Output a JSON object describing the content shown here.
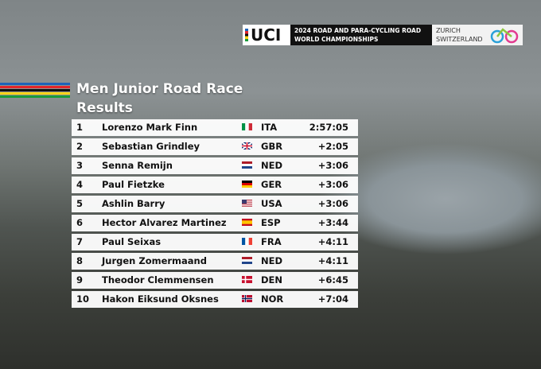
{
  "banner": {
    "logo": "UCI",
    "line1": "2024 ROAD AND PARA-CYCLING ROAD",
    "line2": "WORLD CHAMPIONSHIPS",
    "city": "ZURICH",
    "country": "SWITZERLAND"
  },
  "header": {
    "title": "Men Junior Road Race",
    "subtitle": "Results"
  },
  "table": {
    "rows": [
      [
        "1",
        "Lorenzo Mark Finn",
        "ITA",
        "2:57:05"
      ],
      [
        "2",
        "Sebastian Grindley",
        "GBR",
        "+2:05"
      ],
      [
        "3",
        "Senna Remijn",
        "NED",
        "+3:06"
      ],
      [
        "4",
        "Paul Fietzke",
        "GER",
        "+3:06"
      ],
      [
        "5",
        "Ashlin Barry",
        "USA",
        "+3:06"
      ],
      [
        "6",
        "Hector Alvarez Martinez",
        "ESP",
        "+3:44"
      ],
      [
        "7",
        "Paul Seixas",
        "FRA",
        "+4:11"
      ],
      [
        "8",
        "Jurgen Zomermaand",
        "NED",
        "+4:11"
      ],
      [
        "9",
        "Theodor Clemmensen",
        "DEN",
        "+6:45"
      ],
      [
        "10",
        "Hakon Eiksund Oksnes",
        "NOR",
        "+7:04"
      ]
    ]
  }
}
